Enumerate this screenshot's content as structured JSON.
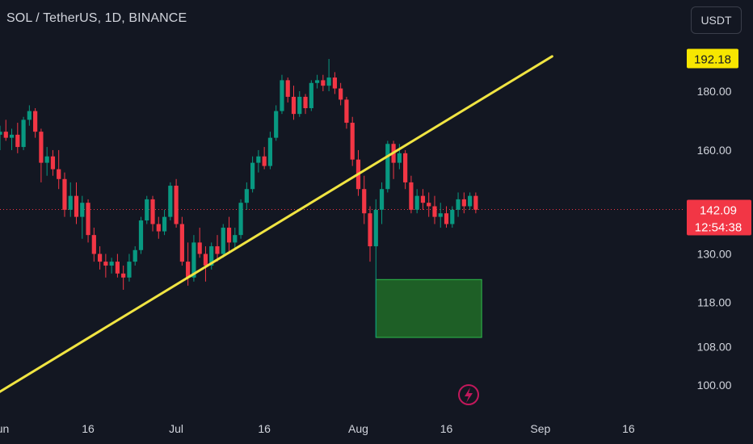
{
  "header": {
    "title": "SOL / TetherUS, 1D, BINANCE",
    "currency": "USDT"
  },
  "colors": {
    "background": "#131722",
    "up": "#089981",
    "down": "#f23645",
    "trendline": "#f0e442",
    "highlight_label": "#f7e600",
    "zone_fill": "#1e5f26",
    "zone_border": "#2ebd4d",
    "text": "#d1d4dc"
  },
  "chart_data": {
    "type": "candlestick",
    "symbol": "SOL/USDT",
    "timeframe": "1D",
    "exchange": "BINANCE",
    "scale": "log",
    "x_ticks": [
      {
        "label": "Jun",
        "day": 0
      },
      {
        "label": "16",
        "day": 15
      },
      {
        "label": "Jul",
        "day": 30
      },
      {
        "label": "16",
        "day": 45
      },
      {
        "label": "Aug",
        "day": 61
      },
      {
        "label": "16",
        "day": 76
      },
      {
        "label": "Sep",
        "day": 92
      },
      {
        "label": "16",
        "day": 107
      }
    ],
    "y_ticks": [
      100,
      108,
      118,
      130,
      142.09,
      160,
      180,
      192.18
    ],
    "y_tick_labels": [
      "100.00",
      "108.00",
      "118.00",
      "130.00",
      "142.09",
      "160.00",
      "180.00",
      "192.18"
    ],
    "ylim": [
      95,
      210
    ],
    "xlim": [
      0,
      112
    ],
    "current_price": {
      "value": 142.09,
      "label": "142.09",
      "countdown": "12:54:38"
    },
    "marked_price": {
      "value": 192.18,
      "label": "192.18"
    },
    "candles": [
      [
        0,
        165,
        168,
        160,
        166
      ],
      [
        1,
        166,
        170,
        163,
        164
      ],
      [
        2,
        164,
        167,
        160,
        165
      ],
      [
        3,
        165,
        169,
        159,
        161
      ],
      [
        4,
        161,
        171,
        160,
        170
      ],
      [
        5,
        170,
        175,
        168,
        173
      ],
      [
        6,
        173,
        174,
        164,
        166
      ],
      [
        7,
        166,
        167,
        150,
        156
      ],
      [
        8,
        156,
        161,
        152,
        158
      ],
      [
        9,
        158,
        160,
        152,
        154
      ],
      [
        10,
        154,
        160,
        148,
        151
      ],
      [
        11,
        151,
        153,
        140,
        142
      ],
      [
        12,
        142,
        150,
        140,
        146
      ],
      [
        13,
        146,
        150,
        138,
        140
      ],
      [
        14,
        140,
        146,
        134,
        144
      ],
      [
        15,
        144,
        145,
        133,
        135
      ],
      [
        16,
        135,
        137,
        128,
        130
      ],
      [
        17,
        130,
        132,
        126,
        128
      ],
      [
        18,
        128,
        130,
        124,
        127
      ],
      [
        19,
        127,
        129,
        125,
        128
      ],
      [
        20,
        128,
        130,
        124,
        125
      ],
      [
        21,
        125,
        127,
        121,
        124
      ],
      [
        22,
        124,
        130,
        123,
        128
      ],
      [
        23,
        128,
        132,
        127,
        131
      ],
      [
        24,
        131,
        140,
        130,
        139
      ],
      [
        25,
        139,
        146,
        138,
        145
      ],
      [
        26,
        145,
        146,
        136,
        138
      ],
      [
        27,
        138,
        140,
        134,
        136
      ],
      [
        28,
        136,
        142,
        135,
        140
      ],
      [
        29,
        140,
        150,
        139,
        149
      ],
      [
        30,
        149,
        151,
        137,
        138
      ],
      [
        31,
        138,
        140,
        127,
        128
      ],
      [
        32,
        128,
        133,
        122,
        124
      ],
      [
        33,
        124,
        135,
        123,
        133
      ],
      [
        34,
        133,
        137,
        129,
        130
      ],
      [
        35,
        130,
        132,
        123,
        127
      ],
      [
        36,
        127,
        133,
        126,
        132
      ],
      [
        37,
        132,
        135,
        128,
        130
      ],
      [
        38,
        130,
        138,
        129,
        137
      ],
      [
        39,
        137,
        140,
        130,
        133
      ],
      [
        40,
        133,
        137,
        131,
        135
      ],
      [
        41,
        135,
        145,
        134,
        144
      ],
      [
        42,
        144,
        150,
        142,
        148
      ],
      [
        43,
        148,
        158,
        147,
        156
      ],
      [
        44,
        156,
        160,
        153,
        158
      ],
      [
        45,
        158,
        161,
        154,
        155
      ],
      [
        46,
        155,
        166,
        154,
        164
      ],
      [
        47,
        164,
        175,
        163,
        173
      ],
      [
        48,
        173,
        186,
        172,
        184
      ],
      [
        49,
        184,
        185,
        176,
        178
      ],
      [
        50,
        178,
        182,
        170,
        172
      ],
      [
        51,
        172,
        180,
        171,
        178
      ],
      [
        52,
        178,
        179,
        172,
        174
      ],
      [
        53,
        174,
        184,
        173,
        183
      ],
      [
        54,
        183,
        186,
        181,
        184
      ],
      [
        55,
        184,
        186,
        180,
        182
      ],
      [
        56,
        182,
        192,
        180,
        185
      ],
      [
        57,
        185,
        187,
        179,
        181
      ],
      [
        58,
        181,
        183,
        175,
        177
      ],
      [
        59,
        177,
        178,
        167,
        169
      ],
      [
        60,
        169,
        171,
        155,
        157
      ],
      [
        61,
        157,
        160,
        146,
        148
      ],
      [
        62,
        148,
        152,
        138,
        141
      ],
      [
        63,
        141,
        143,
        128,
        132
      ],
      [
        64,
        132,
        145,
        110,
        142
      ],
      [
        65,
        142,
        150,
        138,
        148
      ],
      [
        66,
        148,
        163,
        147,
        162
      ],
      [
        67,
        162,
        163,
        151,
        156
      ],
      [
        68,
        156,
        162,
        154,
        159
      ],
      [
        69,
        159,
        160,
        148,
        150
      ],
      [
        70,
        150,
        152,
        141,
        142
      ],
      [
        71,
        142,
        148,
        141,
        146
      ],
      [
        72,
        146,
        148,
        142,
        144
      ],
      [
        73,
        144,
        147,
        140,
        143
      ],
      [
        74,
        143,
        146,
        138,
        140
      ],
      [
        75,
        140,
        144,
        137,
        141
      ],
      [
        76,
        141,
        143,
        137,
        138
      ],
      [
        77,
        138,
        143,
        137,
        142
      ],
      [
        78,
        142,
        147,
        140,
        145
      ],
      [
        79,
        145,
        147,
        141,
        143
      ],
      [
        80,
        143,
        147,
        142,
        146
      ],
      [
        81,
        146,
        147,
        141,
        142
      ]
    ],
    "trendline": {
      "from": {
        "day": -1,
        "price": 98
      },
      "to": {
        "day": 94,
        "price": 193
      }
    },
    "zone": {
      "day_from": 64,
      "day_to": 82,
      "price_top": 123.5,
      "price_bottom": 110
    }
  }
}
